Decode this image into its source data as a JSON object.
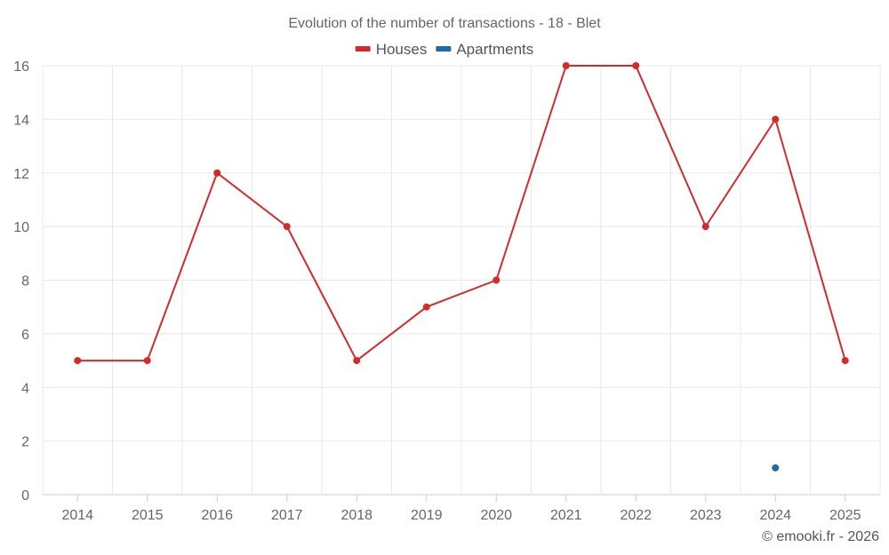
{
  "chart_data": {
    "type": "line",
    "title": "Evolution of the number of transactions - 18 - Blet",
    "xlabel": "",
    "ylabel": "",
    "categories": [
      "2014",
      "2015",
      "2016",
      "2017",
      "2018",
      "2019",
      "2020",
      "2021",
      "2022",
      "2023",
      "2024",
      "2025"
    ],
    "ylim": [
      0,
      16
    ],
    "yticks": [
      0,
      2,
      4,
      6,
      8,
      10,
      12,
      14,
      16
    ],
    "grid": true,
    "legend_position": "top-center",
    "series": [
      {
        "name": "Houses",
        "color": "#d32a2a",
        "values": [
          5,
          5,
          12,
          10,
          5,
          7,
          8,
          16,
          16,
          10,
          14,
          5
        ]
      },
      {
        "name": "Apartments",
        "color": "#1f6aa5",
        "values": [
          null,
          null,
          null,
          null,
          null,
          null,
          null,
          null,
          null,
          null,
          1,
          null
        ]
      }
    ]
  },
  "credit": "© emooki.fr - 2026"
}
